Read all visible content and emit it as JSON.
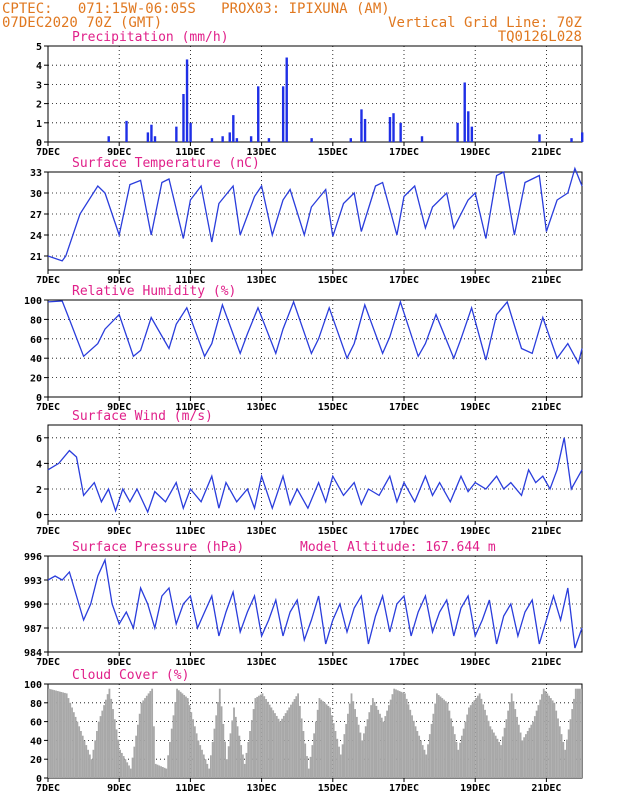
{
  "header": {
    "line1_left": "CPTEC:   071:15W-06:05S   PROX03: IPIXUNA (AM)",
    "line2_left": "07DEC2020 70Z (GMT)",
    "line2_right": "Vertical Grid Line: 70Z",
    "line3_right": "TQ0126L028"
  },
  "colors": {
    "line": "#2a3ddc",
    "bar": "#1f2fe6",
    "cloud": "#a8a8a8",
    "title": "#e0208a",
    "header": "#e07820"
  },
  "chart_data": [
    {
      "type": "bar",
      "title": "Precipitation (mm/h)",
      "ylim": [
        0,
        5
      ],
      "yticks": [
        "0",
        "1",
        "2",
        "3",
        "4",
        "5"
      ],
      "xticks": [
        "7DEC",
        "9DEC",
        "11DEC",
        "13DEC",
        "15DEC",
        "17DEC",
        "19DEC",
        "21DEC"
      ],
      "bars": [
        [
          8.7,
          0.3
        ],
        [
          9.2,
          1.1
        ],
        [
          9.8,
          0.5
        ],
        [
          9.9,
          0.9
        ],
        [
          10.0,
          0.3
        ],
        [
          10.6,
          0.8
        ],
        [
          10.8,
          2.5
        ],
        [
          10.9,
          4.3
        ],
        [
          11.0,
          1.0
        ],
        [
          11.6,
          0.2
        ],
        [
          11.9,
          0.3
        ],
        [
          12.1,
          0.5
        ],
        [
          12.2,
          1.4
        ],
        [
          12.3,
          0.2
        ],
        [
          12.7,
          0.3
        ],
        [
          12.9,
          2.9
        ],
        [
          13.2,
          0.2
        ],
        [
          13.6,
          2.9
        ],
        [
          13.7,
          4.4
        ],
        [
          14.4,
          0.2
        ],
        [
          15.5,
          0.2
        ],
        [
          15.8,
          1.7
        ],
        [
          15.9,
          1.2
        ],
        [
          16.6,
          1.3
        ],
        [
          16.7,
          1.5
        ],
        [
          16.9,
          1.0
        ],
        [
          17.5,
          0.3
        ],
        [
          18.5,
          1.0
        ],
        [
          18.7,
          3.1
        ],
        [
          18.8,
          1.6
        ],
        [
          18.9,
          0.8
        ],
        [
          20.8,
          0.4
        ],
        [
          21.7,
          0.2
        ],
        [
          22.0,
          0.5
        ]
      ]
    },
    {
      "type": "line",
      "title": "Surface Temperature (nC)",
      "ylim": [
        19,
        33
      ],
      "yticks": [
        "21",
        "24",
        "27",
        "30",
        "33"
      ],
      "xticks": [
        "7DEC",
        "9DEC",
        "11DEC",
        "13DEC",
        "15DEC",
        "17DEC",
        "19DEC",
        "21DEC"
      ],
      "x": [
        7.0,
        7.4,
        7.5,
        7.9,
        8.4,
        8.6,
        9.0,
        9.3,
        9.6,
        9.9,
        10.2,
        10.4,
        10.8,
        11.0,
        11.3,
        11.6,
        11.8,
        12.2,
        12.4,
        12.8,
        13.0,
        13.3,
        13.6,
        13.8,
        14.2,
        14.4,
        14.8,
        15.0,
        15.3,
        15.6,
        15.8,
        16.2,
        16.4,
        16.8,
        17.0,
        17.3,
        17.6,
        17.8,
        18.2,
        18.4,
        18.8,
        19.0,
        19.3,
        19.6,
        19.8,
        20.1,
        20.4,
        20.8,
        21.0,
        21.3,
        21.6,
        21.8,
        22.0
      ],
      "values": [
        21.0,
        20.3,
        21.0,
        27.0,
        31.0,
        30.0,
        24.0,
        31.2,
        31.8,
        24.0,
        31.5,
        32.0,
        23.5,
        29.0,
        31.0,
        23.0,
        28.5,
        31.0,
        24.0,
        29.5,
        31.0,
        24.0,
        29.0,
        30.5,
        24.0,
        28.0,
        30.5,
        23.8,
        28.5,
        30.0,
        24.5,
        31.0,
        31.5,
        24.0,
        29.5,
        31.0,
        25.0,
        28.0,
        30.0,
        25.0,
        29.0,
        30.0,
        23.5,
        32.5,
        33.0,
        24.0,
        31.5,
        32.5,
        24.5,
        29.0,
        30.0,
        33.5,
        31.0
      ]
    },
    {
      "type": "line",
      "title": "Relative Humidity (%)",
      "ylim": [
        0,
        100
      ],
      "yticks": [
        "0",
        "20",
        "40",
        "60",
        "80",
        "100"
      ],
      "xticks": [
        "7DEC",
        "9DEC",
        "11DEC",
        "13DEC",
        "15DEC",
        "17DEC",
        "19DEC",
        "21DEC"
      ],
      "x": [
        7.0,
        7.4,
        7.6,
        8.0,
        8.4,
        8.6,
        9.0,
        9.4,
        9.6,
        9.9,
        10.4,
        10.6,
        10.9,
        11.4,
        11.6,
        11.9,
        12.4,
        12.6,
        12.9,
        13.4,
        13.6,
        13.9,
        14.4,
        14.6,
        14.9,
        15.4,
        15.6,
        15.9,
        16.4,
        16.6,
        16.9,
        17.4,
        17.6,
        17.9,
        18.4,
        18.6,
        18.9,
        19.3,
        19.6,
        19.9,
        20.3,
        20.6,
        20.9,
        21.3,
        21.6,
        21.9,
        22.0
      ],
      "values": [
        98.0,
        99.0,
        80.0,
        42.0,
        55.0,
        70.0,
        85.0,
        42.0,
        48.0,
        82.0,
        50.0,
        75.0,
        92.0,
        42.0,
        55.0,
        95.0,
        45.0,
        65.0,
        92.0,
        45.0,
        70.0,
        98.0,
        45.0,
        60.0,
        92.0,
        40.0,
        55.0,
        95.0,
        45.0,
        62.0,
        98.0,
        42.0,
        55.0,
        85.0,
        40.0,
        60.0,
        92.0,
        38.0,
        85.0,
        98.0,
        50.0,
        45.0,
        82.0,
        40.0,
        55.0,
        35.0,
        50.0
      ]
    },
    {
      "type": "line",
      "title": "Surface Wind (m/s)",
      "ylim": [
        -0.5,
        7
      ],
      "yticks": [
        "0",
        "2",
        "4",
        "6"
      ],
      "xticks": [
        "7DEC",
        "9DEC",
        "11DEC",
        "13DEC",
        "15DEC",
        "17DEC",
        "19DEC",
        "21DEC"
      ],
      "x": [
        7.0,
        7.3,
        7.6,
        7.8,
        8.0,
        8.3,
        8.5,
        8.7,
        8.9,
        9.1,
        9.3,
        9.5,
        9.8,
        10.0,
        10.3,
        10.6,
        10.8,
        11.0,
        11.3,
        11.6,
        11.8,
        12.0,
        12.3,
        12.6,
        12.8,
        13.0,
        13.3,
        13.6,
        13.8,
        14.0,
        14.3,
        14.6,
        14.8,
        15.0,
        15.3,
        15.6,
        15.8,
        16.0,
        16.3,
        16.6,
        16.8,
        17.0,
        17.3,
        17.6,
        17.8,
        18.0,
        18.3,
        18.6,
        18.8,
        19.0,
        19.3,
        19.6,
        19.8,
        20.0,
        20.3,
        20.5,
        20.7,
        20.9,
        21.1,
        21.3,
        21.5,
        21.7,
        22.0
      ],
      "values": [
        3.5,
        4.0,
        5.0,
        4.5,
        1.5,
        2.5,
        1.0,
        2.0,
        0.3,
        2.0,
        1.0,
        2.0,
        0.2,
        1.8,
        1.0,
        2.5,
        0.5,
        2.0,
        1.0,
        3.0,
        0.5,
        2.5,
        1.0,
        2.0,
        0.5,
        3.0,
        0.5,
        3.0,
        0.8,
        2.0,
        0.5,
        2.5,
        1.0,
        3.0,
        1.5,
        2.5,
        0.8,
        2.0,
        1.5,
        3.0,
        1.0,
        2.5,
        1.0,
        3.0,
        1.5,
        2.5,
        1.0,
        3.0,
        1.8,
        2.5,
        2.0,
        3.0,
        2.0,
        2.5,
        1.5,
        3.5,
        2.5,
        3.0,
        2.0,
        3.5,
        6.0,
        2.0,
        3.5
      ]
    },
    {
      "type": "line",
      "title": "Surface Pressure (hPa)",
      "annotation": "Model Altitude: 167.644 m",
      "ylim": [
        984,
        996
      ],
      "yticks": [
        "984",
        "987",
        "990",
        "993",
        "996"
      ],
      "xticks": [
        "7DEC",
        "9DEC",
        "11DEC",
        "13DEC",
        "15DEC",
        "17DEC",
        "19DEC",
        "21DEC"
      ],
      "x": [
        7.0,
        7.2,
        7.4,
        7.6,
        7.8,
        8.0,
        8.2,
        8.4,
        8.6,
        8.8,
        9.0,
        9.2,
        9.4,
        9.6,
        9.8,
        10.0,
        10.2,
        10.4,
        10.6,
        10.8,
        11.0,
        11.2,
        11.4,
        11.6,
        11.8,
        12.0,
        12.2,
        12.4,
        12.6,
        12.8,
        13.0,
        13.2,
        13.4,
        13.6,
        13.8,
        14.0,
        14.2,
        14.4,
        14.6,
        14.8,
        15.0,
        15.2,
        15.4,
        15.6,
        15.8,
        16.0,
        16.2,
        16.4,
        16.6,
        16.8,
        17.0,
        17.2,
        17.4,
        17.6,
        17.8,
        18.0,
        18.2,
        18.4,
        18.6,
        18.8,
        19.0,
        19.2,
        19.4,
        19.6,
        19.8,
        20.0,
        20.2,
        20.4,
        20.6,
        20.8,
        21.0,
        21.2,
        21.4,
        21.6,
        21.8,
        22.0
      ],
      "values": [
        993.0,
        993.5,
        993.0,
        994.0,
        991.0,
        988.0,
        990.0,
        993.5,
        995.5,
        990.0,
        987.5,
        989.0,
        987.0,
        992.0,
        990.0,
        987.0,
        991.0,
        992.0,
        987.5,
        990.0,
        991.0,
        987.0,
        989.0,
        991.0,
        986.0,
        989.0,
        991.5,
        986.5,
        989.0,
        991.0,
        986.0,
        988.0,
        990.5,
        986.0,
        989.0,
        990.5,
        985.5,
        988.0,
        991.0,
        985.0,
        988.0,
        990.0,
        986.5,
        989.5,
        991.0,
        985.0,
        988.5,
        991.0,
        986.5,
        990.0,
        991.0,
        986.0,
        989.0,
        991.0,
        986.5,
        989.0,
        990.5,
        986.0,
        989.5,
        991.0,
        986.0,
        988.0,
        990.5,
        985.0,
        988.5,
        990.0,
        986.0,
        989.0,
        990.5,
        985.0,
        988.0,
        991.0,
        988.0,
        992.0,
        984.5,
        987.0
      ]
    },
    {
      "type": "area",
      "title": "Cloud Cover (%)",
      "ylim": [
        0,
        100
      ],
      "yticks": [
        "0",
        "20",
        "40",
        "60",
        "80",
        "100"
      ],
      "xticks": [
        "7DEC",
        "9DEC",
        "11DEC",
        "13DEC",
        "15DEC",
        "17DEC",
        "19DEC",
        "21DEC"
      ],
      "x": [
        7.0,
        7.5,
        8.0,
        8.2,
        8.4,
        8.7,
        9.0,
        9.3,
        9.6,
        9.9,
        10.0,
        10.3,
        10.6,
        10.9,
        11.2,
        11.5,
        11.8,
        12.0,
        12.2,
        12.5,
        12.8,
        13.0,
        13.5,
        14.0,
        14.3,
        14.6,
        14.9,
        15.2,
        15.5,
        15.8,
        16.1,
        16.4,
        16.7,
        17.0,
        17.3,
        17.6,
        17.9,
        18.2,
        18.5,
        18.8,
        19.1,
        19.4,
        19.7,
        20.0,
        20.3,
        20.6,
        20.9,
        21.2,
        21.5,
        21.8,
        22.0
      ],
      "values": [
        95,
        90,
        40,
        20,
        60,
        95,
        30,
        10,
        80,
        95,
        15,
        10,
        95,
        85,
        40,
        10,
        95,
        20,
        75,
        15,
        85,
        90,
        60,
        90,
        10,
        85,
        75,
        25,
        90,
        40,
        85,
        60,
        95,
        90,
        55,
        25,
        90,
        80,
        30,
        75,
        90,
        55,
        35,
        90,
        40,
        60,
        95,
        80,
        30,
        95,
        95
      ]
    }
  ]
}
